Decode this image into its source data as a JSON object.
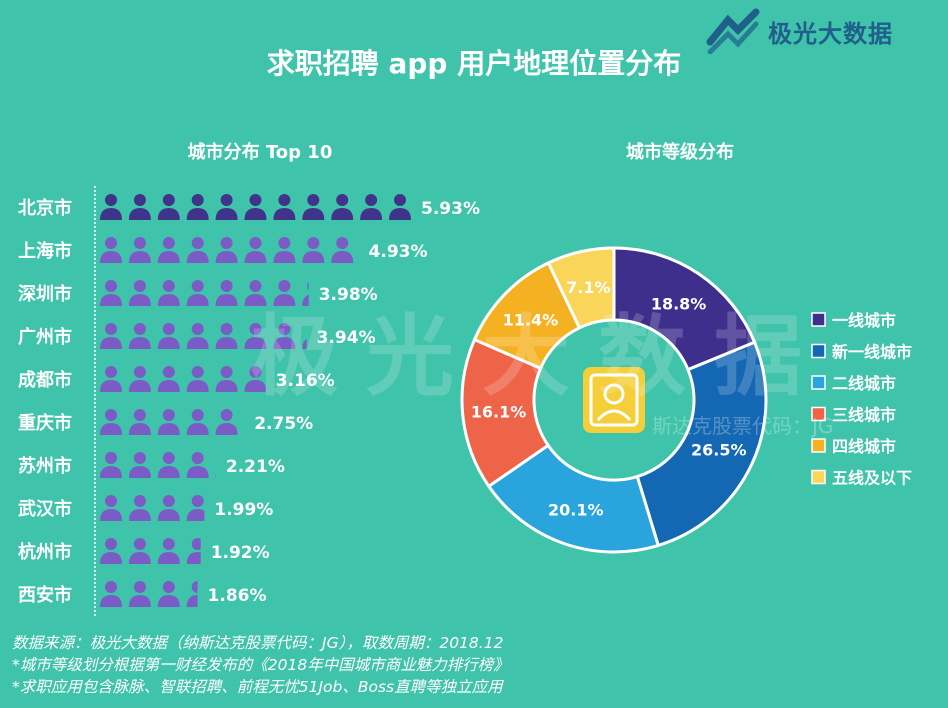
{
  "brand": {
    "name": "极光大数据",
    "color": "#1f5f8a",
    "icon": "jiguang-logo-icon"
  },
  "title": "求职招聘 app 用户地理位置分布",
  "watermark": {
    "text": "极光大数据",
    "sub": "斯达克股票代码：JG"
  },
  "left_chart": {
    "subtitle": "城市分布 Top 10",
    "icon": "person-icon",
    "colors": {
      "first": "#40338a",
      "rest": "#7b5bc6"
    }
  },
  "right_chart": {
    "subtitle": "城市等级分布",
    "center_icon": "user-badge-icon"
  },
  "chart_data": [
    {
      "type": "bar",
      "title": "城市分布 Top 10",
      "categories": [
        "北京市",
        "上海市",
        "深圳市",
        "广州市",
        "成都市",
        "重庆市",
        "苏州市",
        "武汉市",
        "杭州市",
        "西安市"
      ],
      "values": [
        5.93,
        4.93,
        3.98,
        3.94,
        3.16,
        2.75,
        2.21,
        1.99,
        1.92,
        1.86
      ],
      "labels": [
        "5.93%",
        "4.93%",
        "3.98%",
        "3.94%",
        "3.16%",
        "2.75%",
        "2.21%",
        "1.99%",
        "1.92%",
        "1.86%"
      ]
    },
    {
      "type": "pie",
      "title": "城市等级分布",
      "categories": [
        "一线城市",
        "新一线城市",
        "二线城市",
        "三线城市",
        "四线城市",
        "五线及以下"
      ],
      "values": [
        18.8,
        26.5,
        20.1,
        16.1,
        11.4,
        7.1
      ],
      "labels": [
        "18.8%",
        "26.5%",
        "20.1%",
        "16.1%",
        "11.4%",
        "7.1%"
      ],
      "colors": [
        "#3f2f8c",
        "#1467b3",
        "#2aa4dc",
        "#ee6448",
        "#f4b223",
        "#f9d65a"
      ],
      "legend_position": "right"
    }
  ],
  "footer": [
    "数据来源：极光大数据（纳斯达克股票代码：JG），取数周期：2018.12",
    "*城市等级划分根据第一财经发布的《2018年中国城市商业魅力排行榜》",
    "*求职应用包含脉脉、智联招聘、前程无忧51Job、Boss直聘等独立应用"
  ]
}
